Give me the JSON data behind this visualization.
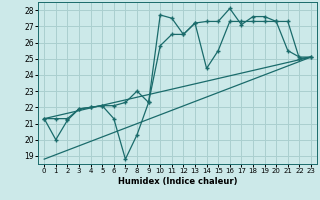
{
  "xlabel": "Humidex (Indice chaleur)",
  "bg_color": "#cce9e9",
  "grid_color": "#aacfcf",
  "line_color": "#1a6b6b",
  "xlim": [
    -0.5,
    23.5
  ],
  "ylim": [
    18.5,
    28.5
  ],
  "yticks": [
    19,
    20,
    21,
    22,
    23,
    24,
    25,
    26,
    27,
    28
  ],
  "xticks": [
    0,
    1,
    2,
    3,
    4,
    5,
    6,
    7,
    8,
    9,
    10,
    11,
    12,
    13,
    14,
    15,
    16,
    17,
    18,
    19,
    20,
    21,
    22,
    23
  ],
  "series1_x": [
    0,
    1,
    2,
    3,
    4,
    5,
    6,
    7,
    8,
    9,
    10,
    11,
    12,
    13,
    14,
    15,
    16,
    17,
    18,
    19,
    20,
    21,
    22,
    23
  ],
  "series1_y": [
    21.3,
    20.0,
    21.2,
    21.9,
    22.0,
    22.1,
    21.3,
    18.8,
    20.3,
    22.3,
    27.7,
    27.5,
    26.5,
    27.2,
    27.3,
    27.3,
    28.1,
    27.1,
    27.6,
    27.6,
    27.3,
    25.5,
    25.1,
    25.1
  ],
  "series2_x": [
    0,
    1,
    2,
    3,
    4,
    5,
    6,
    7,
    8,
    9,
    10,
    11,
    12,
    13,
    14,
    15,
    16,
    17,
    18,
    19,
    20,
    21,
    22,
    23
  ],
  "series2_y": [
    21.3,
    21.3,
    21.3,
    21.9,
    22.0,
    22.1,
    22.1,
    22.3,
    23.0,
    22.3,
    25.8,
    26.5,
    26.5,
    27.2,
    24.4,
    25.5,
    27.3,
    27.3,
    27.3,
    27.3,
    27.3,
    27.3,
    25.0,
    25.1
  ],
  "series3_x": [
    0,
    23
  ],
  "series3_y": [
    21.3,
    25.1
  ],
  "series4_x": [
    0,
    23
  ],
  "series4_y": [
    18.8,
    25.1
  ]
}
